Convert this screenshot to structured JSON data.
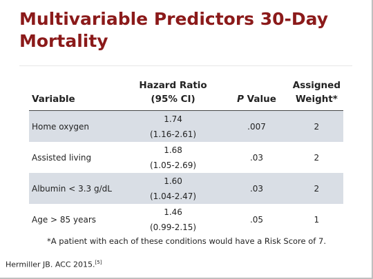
{
  "title": "Multivariable Predictors 30-Day Mortality",
  "table": {
    "header": [
      "Variable",
      {
        "line1": "Hazard Ratio",
        "line2": "(95% CI)"
      },
      {
        "emphasis": "P",
        "text": "Value"
      },
      {
        "line1": "Assigned",
        "line2": "Weight*"
      }
    ],
    "rows": [
      [
        "Home oxygen",
        {
          "ratio": "1.74",
          "ci": "(1.16-2.61)"
        },
        ".007",
        "2"
      ],
      [
        "Assisted living",
        {
          "ratio": "1.68",
          "ci": "(1.05-2.69)"
        },
        ".03",
        "2"
      ],
      [
        "Albumin < 3.3 g/dL",
        {
          "ratio": "1.60",
          "ci": "(1.04-2.47)"
        },
        ".03",
        "2"
      ],
      [
        "Age > 85 years",
        {
          "ratio": "1.46",
          "ci": "(0.99-2.15)"
        },
        ".05",
        "1"
      ]
    ]
  },
  "footnote": "*A patient with each of these conditions would have a Risk Score of 7.",
  "citation": {
    "text": "Hermiller JB. ACC 2015.",
    "ref": "[5]"
  }
}
